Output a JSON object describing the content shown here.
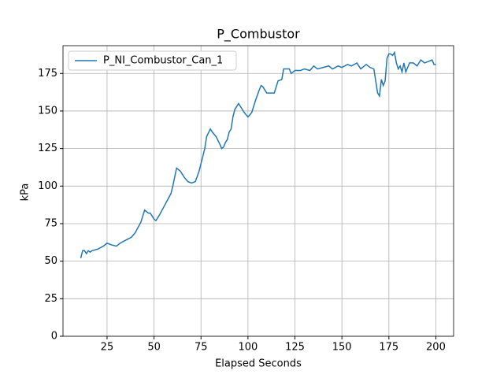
{
  "chart_data": {
    "type": "line",
    "title": "P_Combustor",
    "x_label": "Elapsed Seconds",
    "y_label": "kPa",
    "x": [
      11,
      12,
      13,
      14,
      15,
      16,
      17,
      20,
      23,
      25,
      27,
      30,
      32,
      35,
      38,
      40,
      43,
      45,
      47,
      48,
      50,
      51,
      53,
      56,
      59,
      60,
      61,
      62,
      64,
      66,
      68,
      70,
      72,
      74,
      76,
      77,
      78,
      80,
      81,
      83,
      85,
      86,
      87,
      88,
      89,
      90,
      91,
      92,
      93,
      95,
      96,
      98,
      100,
      102,
      103,
      104,
      106,
      107,
      108,
      110,
      113,
      114,
      115,
      116,
      118,
      119,
      122,
      123,
      125,
      128,
      130,
      133,
      135,
      137,
      140,
      143,
      145,
      148,
      150,
      153,
      155,
      158,
      160,
      163,
      165,
      167,
      168,
      169,
      170,
      171,
      172,
      173,
      174,
      175,
      176,
      177,
      178,
      179,
      180,
      181,
      182,
      183,
      184,
      186,
      188,
      190,
      192,
      194,
      196,
      198,
      199,
      200
    ],
    "series": [
      {
        "name": "P_NI_Combustor_Can_1",
        "color": "#1f77b4",
        "values": [
          52,
          57,
          57,
          55,
          57,
          56,
          57,
          58,
          60,
          62,
          61,
          60,
          62,
          64,
          66,
          69,
          76,
          84,
          82,
          82,
          78,
          77,
          81,
          88,
          95,
          100,
          106,
          112,
          110,
          106,
          103,
          102,
          103,
          110,
          120,
          125,
          133,
          138,
          136,
          133,
          128,
          125,
          126,
          129,
          131,
          136,
          138,
          146,
          151,
          155,
          153,
          149,
          146,
          149,
          153,
          157,
          164,
          167,
          166,
          162,
          162,
          162,
          166,
          170,
          171,
          178,
          178,
          175,
          177,
          177,
          178,
          177,
          180,
          178,
          179,
          180,
          178,
          180,
          179,
          181,
          180,
          182,
          178,
          181,
          179,
          178,
          170,
          162,
          160,
          171,
          167,
          170,
          185,
          188,
          188,
          187,
          189,
          182,
          178,
          180,
          176,
          182,
          176,
          182,
          182,
          180,
          184,
          182,
          183,
          184,
          181,
          181
        ]
      }
    ],
    "xlim": [
      1.55,
      209.45
    ],
    "ylim": [
      0,
      193.5
    ],
    "xticks": [
      25,
      50,
      75,
      100,
      125,
      150,
      175,
      200
    ],
    "yticks": [
      0,
      25,
      50,
      75,
      100,
      125,
      150,
      175
    ],
    "grid": true,
    "legend": "upper left"
  }
}
